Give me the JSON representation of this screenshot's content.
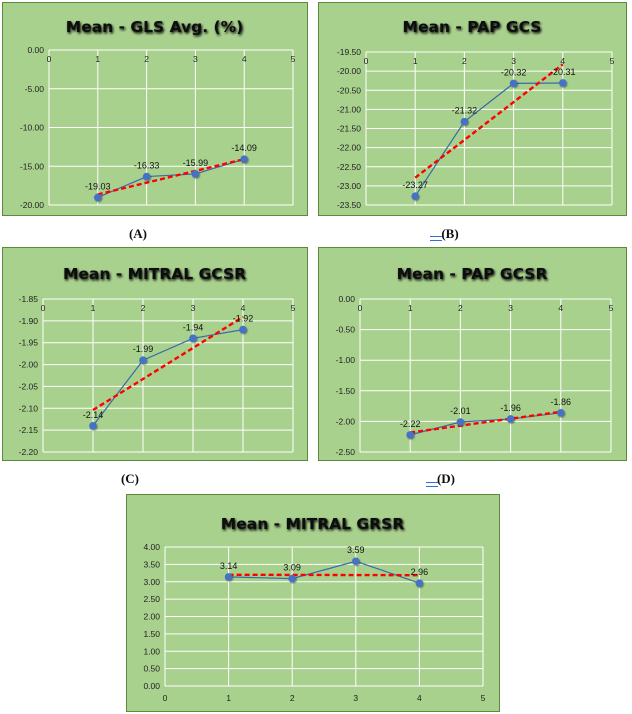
{
  "colors": {
    "background": "#a9d18e",
    "border": "#5a8a3a",
    "grid": "#ffffff",
    "series_line": "#3a6aa8",
    "marker": "#4472c4",
    "trendline": "#ff0000"
  },
  "captions": [
    "(A)",
    "(B)",
    "(C)",
    "(D)"
  ],
  "chart_data": [
    {
      "id": "A",
      "type": "scatter",
      "title": "Mean - GLS Avg. (%)",
      "x": [
        1,
        2,
        3,
        4
      ],
      "y": [
        -19.03,
        -16.33,
        -15.99,
        -14.09
      ],
      "data_labels": [
        "-19.03",
        "-16.33",
        "-15.99",
        "-14.09"
      ],
      "xlim": [
        0,
        5
      ],
      "ylim": [
        -20,
        0
      ],
      "x_ticks": [
        "0",
        "1",
        "2",
        "3",
        "4",
        "5"
      ],
      "y_ticks": [
        "0.00",
        "-5.00",
        "-10.00",
        "-15.00",
        "-20.00"
      ],
      "y_tick_values": [
        0,
        -5,
        -10,
        -15,
        -20
      ],
      "x_axis_at_top": true,
      "trendline": "linear",
      "grid": true
    },
    {
      "id": "B",
      "type": "scatter",
      "title": "Mean - PAP GCS",
      "x": [
        1,
        2,
        3,
        4
      ],
      "y": [
        -23.27,
        -21.32,
        -20.32,
        -20.31
      ],
      "data_labels": [
        "-23.27",
        "-21.32",
        "-20.32",
        "-20.31"
      ],
      "xlim": [
        0,
        5
      ],
      "ylim": [
        -23.5,
        -19.5
      ],
      "x_ticks": [
        "0",
        "1",
        "2",
        "3",
        "4",
        "5"
      ],
      "y_ticks": [
        "-19.50",
        "-20.00",
        "-20.50",
        "-21.00",
        "-21.50",
        "-22.00",
        "-22.50",
        "-23.00",
        "-23.50"
      ],
      "y_tick_values": [
        -19.5,
        -20,
        -20.5,
        -21,
        -21.5,
        -22,
        -22.5,
        -23,
        -23.5
      ],
      "x_axis_at_top": true,
      "trendline": "linear",
      "grid": true
    },
    {
      "id": "C",
      "type": "scatter",
      "title": "Mean - MITRAL GCSR",
      "x": [
        1,
        2,
        3,
        4
      ],
      "y": [
        -2.14,
        -1.99,
        -1.94,
        -1.92
      ],
      "data_labels": [
        "-2.14",
        "-1.99",
        "-1.94",
        "-1.92"
      ],
      "xlim": [
        0,
        5
      ],
      "ylim": [
        -2.2,
        -1.85
      ],
      "x_ticks": [
        "0",
        "1",
        "2",
        "3",
        "4",
        "5"
      ],
      "y_ticks": [
        "-1.85",
        "-1.90",
        "-1.95",
        "-2.00",
        "-2.05",
        "-2.10",
        "-2.15",
        "-2.20"
      ],
      "y_tick_values": [
        -1.85,
        -1.9,
        -1.95,
        -2.0,
        -2.05,
        -2.1,
        -2.15,
        -2.2
      ],
      "x_axis_at_top": true,
      "trendline": "linear",
      "grid": true
    },
    {
      "id": "D",
      "type": "scatter",
      "title": "Mean - PAP GCSR",
      "x": [
        1,
        2,
        3,
        4
      ],
      "y": [
        -2.22,
        -2.01,
        -1.96,
        -1.86
      ],
      "data_labels": [
        "-2.22",
        "-2.01",
        "-1.96",
        "-1.86"
      ],
      "xlim": [
        0,
        5
      ],
      "ylim": [
        -2.5,
        0
      ],
      "x_ticks": [
        "0",
        "1",
        "2",
        "3",
        "4",
        "5"
      ],
      "y_ticks": [
        "0.00",
        "-0.50",
        "-1.00",
        "-1.50",
        "-2.00",
        "-2.50"
      ],
      "y_tick_values": [
        0,
        -0.5,
        -1,
        -1.5,
        -2,
        -2.5
      ],
      "x_axis_at_top": true,
      "trendline": "linear",
      "grid": true
    },
    {
      "id": "E",
      "type": "scatter",
      "title": "Mean - MITRAL GRSR",
      "x": [
        1,
        2,
        3,
        4
      ],
      "y": [
        3.14,
        3.09,
        3.59,
        2.96
      ],
      "data_labels": [
        "3.14",
        "3.09",
        "3.59",
        "2.96"
      ],
      "xlim": [
        0,
        5
      ],
      "ylim": [
        0,
        4
      ],
      "x_ticks": [
        "0",
        "1",
        "2",
        "3",
        "4",
        "5"
      ],
      "y_ticks": [
        "4.00",
        "3.50",
        "3.00",
        "2.50",
        "2.00",
        "1.50",
        "1.00",
        "0.50",
        "0.00"
      ],
      "y_tick_values": [
        4,
        3.5,
        3,
        2.5,
        2,
        1.5,
        1,
        0.5,
        0
      ],
      "x_axis_at_top": false,
      "trendline": "linear",
      "grid": true
    }
  ]
}
